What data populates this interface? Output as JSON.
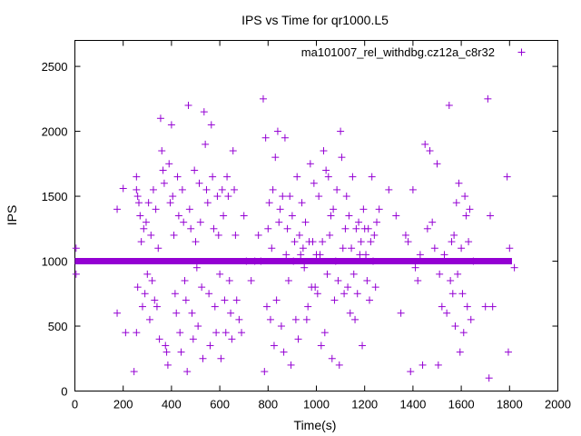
{
  "chart_data": {
    "type": "scatter",
    "title": "IPS vs Time for qr1000.L5",
    "xlabel": "Time(s)",
    "ylabel": "IPS",
    "xlim": [
      0,
      2000
    ],
    "ylim": [
      0,
      2700
    ],
    "xticks": [
      0,
      200,
      400,
      600,
      800,
      1000,
      1200,
      1400,
      1600,
      1800,
      2000
    ],
    "yticks": [
      0,
      500,
      1000,
      1500,
      2000,
      2500
    ],
    "grid": false,
    "legend_position": "top-right",
    "marker": "plus",
    "color": "#9400D3",
    "series": [
      {
        "name": "ma101007_rel_withdbg.cz12a_c8r32",
        "baseline": {
          "y": 1000,
          "x_start": 0,
          "x_end": 1810
        },
        "points": [
          [
            5,
            1100
          ],
          [
            5,
            900
          ],
          [
            175,
            1400
          ],
          [
            175,
            600
          ],
          [
            200,
            1560
          ],
          [
            210,
            450
          ],
          [
            245,
            150
          ],
          [
            255,
            1650
          ],
          [
            255,
            1550
          ],
          [
            260,
            1500
          ],
          [
            265,
            1450
          ],
          [
            260,
            800
          ],
          [
            255,
            450
          ],
          [
            270,
            1350
          ],
          [
            275,
            1150
          ],
          [
            280,
            650
          ],
          [
            285,
            1250
          ],
          [
            290,
            750
          ],
          [
            295,
            1300
          ],
          [
            300,
            900
          ],
          [
            305,
            1450
          ],
          [
            310,
            550
          ],
          [
            315,
            1200
          ],
          [
            320,
            850
          ],
          [
            325,
            1550
          ],
          [
            330,
            700
          ],
          [
            335,
            1400
          ],
          [
            340,
            650
          ],
          [
            345,
            1100
          ],
          [
            350,
            400
          ],
          [
            355,
            2100
          ],
          [
            360,
            1850
          ],
          [
            365,
            1700
          ],
          [
            370,
            1600
          ],
          [
            375,
            350
          ],
          [
            380,
            300
          ],
          [
            385,
            200
          ],
          [
            390,
            1750
          ],
          [
            395,
            1450
          ],
          [
            400,
            2050
          ],
          [
            405,
            1500
          ],
          [
            410,
            1200
          ],
          [
            415,
            750
          ],
          [
            420,
            600
          ],
          [
            425,
            1650
          ],
          [
            430,
            1350
          ],
          [
            435,
            450
          ],
          [
            440,
            300
          ],
          [
            445,
            1550
          ],
          [
            450,
            1300
          ],
          [
            455,
            850
          ],
          [
            460,
            700
          ],
          [
            465,
            150
          ],
          [
            470,
            2200
          ],
          [
            475,
            1400
          ],
          [
            480,
            1250
          ],
          [
            485,
            600
          ],
          [
            490,
            400
          ],
          [
            495,
            1700
          ],
          [
            500,
            1150
          ],
          [
            505,
            950
          ],
          [
            510,
            500
          ],
          [
            515,
            1600
          ],
          [
            520,
            1300
          ],
          [
            525,
            800
          ],
          [
            530,
            250
          ],
          [
            535,
            2150
          ],
          [
            540,
            1900
          ],
          [
            545,
            1550
          ],
          [
            550,
            1450
          ],
          [
            555,
            750
          ],
          [
            560,
            350
          ],
          [
            565,
            2050
          ],
          [
            570,
            1650
          ],
          [
            575,
            1250
          ],
          [
            580,
            650
          ],
          [
            585,
            450
          ],
          [
            590,
            1500
          ],
          [
            595,
            1200
          ],
          [
            600,
            900
          ],
          [
            605,
            250
          ],
          [
            610,
            1550
          ],
          [
            615,
            1350
          ],
          [
            620,
            700
          ],
          [
            625,
            450
          ],
          [
            630,
            1650
          ],
          [
            635,
            1500
          ],
          [
            640,
            850
          ],
          [
            645,
            600
          ],
          [
            650,
            400
          ],
          [
            655,
            1850
          ],
          [
            660,
            1550
          ],
          [
            665,
            1200
          ],
          [
            670,
            700
          ],
          [
            680,
            550
          ],
          [
            690,
            450
          ],
          [
            700,
            1350
          ],
          [
            710,
            1000
          ],
          [
            730,
            850
          ],
          [
            745,
            1000
          ],
          [
            760,
            1200
          ],
          [
            770,
            1000
          ],
          [
            780,
            2250
          ],
          [
            785,
            150
          ],
          [
            790,
            1950
          ],
          [
            795,
            650
          ],
          [
            800,
            1250
          ],
          [
            805,
            1450
          ],
          [
            810,
            550
          ],
          [
            815,
            1100
          ],
          [
            820,
            1550
          ],
          [
            825,
            350
          ],
          [
            830,
            1800
          ],
          [
            835,
            700
          ],
          [
            840,
            2000
          ],
          [
            845,
            1300
          ],
          [
            850,
            1400
          ],
          [
            855,
            500
          ],
          [
            860,
            1500
          ],
          [
            865,
            300
          ],
          [
            870,
            1950
          ],
          [
            875,
            1050
          ],
          [
            880,
            1250
          ],
          [
            885,
            850
          ],
          [
            890,
            1500
          ],
          [
            895,
            200
          ],
          [
            900,
            1350
          ],
          [
            905,
            1000
          ],
          [
            910,
            1150
          ],
          [
            915,
            550
          ],
          [
            920,
            1650
          ],
          [
            925,
            400
          ],
          [
            930,
            1200
          ],
          [
            935,
            1050
          ],
          [
            940,
            1450
          ],
          [
            945,
            1100
          ],
          [
            950,
            950
          ],
          [
            955,
            1300
          ],
          [
            960,
            550
          ],
          [
            965,
            650
          ],
          [
            970,
            1150
          ],
          [
            975,
            1750
          ],
          [
            980,
            800
          ],
          [
            985,
            1150
          ],
          [
            990,
            1600
          ],
          [
            995,
            800
          ],
          [
            1000,
            1050
          ],
          [
            1005,
            750
          ],
          [
            1010,
            1500
          ],
          [
            1015,
            1050
          ],
          [
            1020,
            350
          ],
          [
            1025,
            1150
          ],
          [
            1030,
            1850
          ],
          [
            1035,
            450
          ],
          [
            1040,
            1700
          ],
          [
            1045,
            900
          ],
          [
            1050,
            1650
          ],
          [
            1055,
            1200
          ],
          [
            1060,
            1350
          ],
          [
            1065,
            250
          ],
          [
            1070,
            1400
          ],
          [
            1075,
            700
          ],
          [
            1080,
            1000
          ],
          [
            1085,
            1550
          ],
          [
            1090,
            850
          ],
          [
            1095,
            200
          ],
          [
            1100,
            2000
          ],
          [
            1105,
            1800
          ],
          [
            1110,
            1100
          ],
          [
            1115,
            750
          ],
          [
            1120,
            1250
          ],
          [
            1125,
            1500
          ],
          [
            1130,
            800
          ],
          [
            1135,
            1350
          ],
          [
            1140,
            600
          ],
          [
            1145,
            1100
          ],
          [
            1150,
            1650
          ],
          [
            1155,
            900
          ],
          [
            1160,
            550
          ],
          [
            1165,
            1250
          ],
          [
            1170,
            750
          ],
          [
            1175,
            1300
          ],
          [
            1180,
            1050
          ],
          [
            1185,
            1150
          ],
          [
            1190,
            350
          ],
          [
            1195,
            1400
          ],
          [
            1200,
            1250
          ],
          [
            1205,
            1050
          ],
          [
            1210,
            850
          ],
          [
            1215,
            1250
          ],
          [
            1220,
            700
          ],
          [
            1225,
            1150
          ],
          [
            1230,
            1650
          ],
          [
            1235,
            1000
          ],
          [
            1240,
            1200
          ],
          [
            1245,
            800
          ],
          [
            1250,
            1300
          ],
          [
            1260,
            1400
          ],
          [
            1300,
            1550
          ],
          [
            1330,
            1350
          ],
          [
            1350,
            600
          ],
          [
            1370,
            1200
          ],
          [
            1380,
            1150
          ],
          [
            1390,
            150
          ],
          [
            1400,
            1550
          ],
          [
            1410,
            950
          ],
          [
            1420,
            850
          ],
          [
            1430,
            1050
          ],
          [
            1440,
            200
          ],
          [
            1450,
            1900
          ],
          [
            1460,
            1250
          ],
          [
            1470,
            1850
          ],
          [
            1480,
            1300
          ],
          [
            1490,
            1100
          ],
          [
            1500,
            1750
          ],
          [
            1505,
            200
          ],
          [
            1510,
            900
          ],
          [
            1520,
            650
          ],
          [
            1530,
            1050
          ],
          [
            1540,
            600
          ],
          [
            1550,
            2200
          ],
          [
            1555,
            850
          ],
          [
            1560,
            1150
          ],
          [
            1565,
            750
          ],
          [
            1570,
            1200
          ],
          [
            1575,
            500
          ],
          [
            1580,
            1450
          ],
          [
            1585,
            900
          ],
          [
            1590,
            1600
          ],
          [
            1595,
            300
          ],
          [
            1600,
            1100
          ],
          [
            1605,
            750
          ],
          [
            1610,
            450
          ],
          [
            1615,
            1500
          ],
          [
            1620,
            1350
          ],
          [
            1625,
            650
          ],
          [
            1630,
            1150
          ],
          [
            1635,
            1400
          ],
          [
            1640,
            550
          ],
          [
            1650,
            1000
          ],
          [
            1700,
            650
          ],
          [
            1710,
            2250
          ],
          [
            1715,
            100
          ],
          [
            1720,
            1350
          ],
          [
            1730,
            650
          ],
          [
            1790,
            1650
          ],
          [
            1795,
            300
          ],
          [
            1800,
            1100
          ],
          [
            1820,
            950
          ]
        ]
      }
    ]
  }
}
